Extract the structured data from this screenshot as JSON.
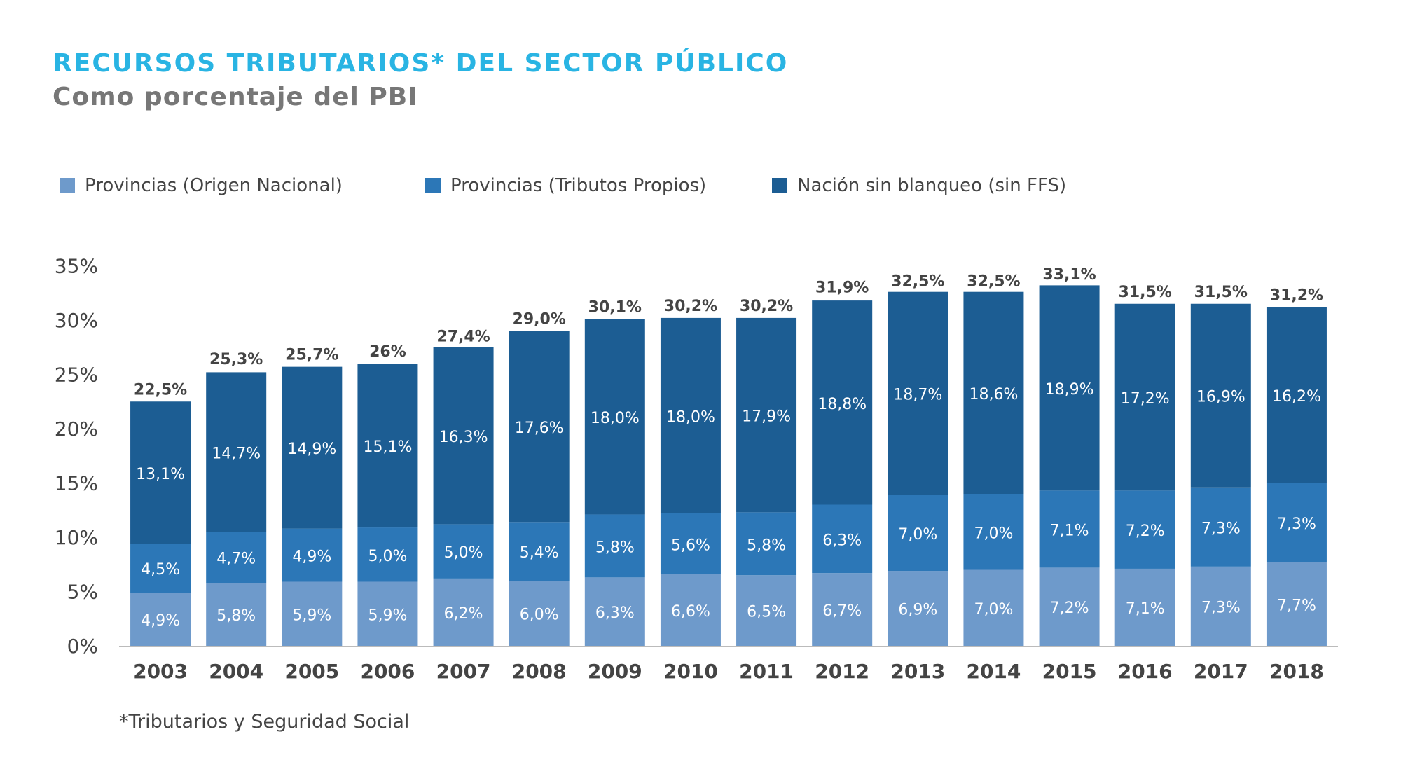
{
  "title": "RECURSOS TRIBUTARIOS* DEL SECTOR PÚBLICO",
  "subtitle": "Como porcentaje del PBI",
  "footnote": "*Tributarios y Seguridad Social",
  "colors": {
    "title": "#29b4e3",
    "series_1": "#6e9acb",
    "series_2": "#2c77b7",
    "series_3": "#1c5d93",
    "axis": "#bbbbbb"
  },
  "chart_data": {
    "type": "bar",
    "stacked": true,
    "categories": [
      "2003",
      "2004",
      "2005",
      "2006",
      "2007",
      "2008",
      "2009",
      "2010",
      "2011",
      "2012",
      "2013",
      "2014",
      "2015",
      "2016",
      "2017",
      "2018"
    ],
    "ylim": [
      0,
      35
    ],
    "yticks": [
      "0%",
      "5%",
      "10%",
      "15%",
      "20%",
      "25%",
      "30%",
      "35%"
    ],
    "legend_position": "top-left",
    "grid": false,
    "series": [
      {
        "name": "Provincias (Origen Nacional)",
        "color": "#6e9acb",
        "values": [
          4.9,
          5.8,
          5.9,
          5.9,
          6.2,
          6.0,
          6.3,
          6.6,
          6.5,
          6.7,
          6.9,
          7.0,
          7.2,
          7.1,
          7.3,
          7.7
        ],
        "labels": [
          "4,9%",
          "5,8%",
          "5,9%",
          "5,9%",
          "6,2%",
          "6,0%",
          "6,3%",
          "6,6%",
          "6,5%",
          "6,7%",
          "6,9%",
          "7,0%",
          "7,2%",
          "7,1%",
          "7,3%",
          "7,7%"
        ]
      },
      {
        "name": "Provincias (Tributos Propios)",
        "color": "#2c77b7",
        "values": [
          4.5,
          4.7,
          4.9,
          5.0,
          5.0,
          5.4,
          5.8,
          5.6,
          5.8,
          6.3,
          7.0,
          7.0,
          7.1,
          7.2,
          7.3,
          7.3
        ],
        "labels": [
          "4,5%",
          "4,7%",
          "4,9%",
          "5,0%",
          "5,0%",
          "5,4%",
          "5,8%",
          "5,6%",
          "5,8%",
          "6,3%",
          "7,0%",
          "7,0%",
          "7,1%",
          "7,2%",
          "7,3%",
          "7,3%"
        ]
      },
      {
        "name": "Nación sin blanqueo (sin FFS)",
        "color": "#1c5d93",
        "values": [
          13.1,
          14.7,
          14.9,
          15.1,
          16.3,
          17.6,
          18.0,
          18.0,
          17.9,
          18.8,
          18.7,
          18.6,
          18.9,
          17.2,
          16.9,
          16.2
        ],
        "labels": [
          "13,1%",
          "14,7%",
          "14,9%",
          "15,1%",
          "16,3%",
          "17,6%",
          "18,0%",
          "18,0%",
          "17,9%",
          "18,8%",
          "18,7%",
          "18,6%",
          "18,9%",
          "17,2%",
          "16,9%",
          "16,2%"
        ]
      }
    ],
    "totals": [
      22.5,
      25.3,
      25.7,
      26,
      27.4,
      29.0,
      30.1,
      30.2,
      30.2,
      31.9,
      32.5,
      32.5,
      33.1,
      31.5,
      31.5,
      31.2
    ],
    "total_labels": [
      "22,5%",
      "25,3%",
      "25,7%",
      "26%",
      "27,4%",
      "29,0%",
      "30,1%",
      "30,2%",
      "30,2%",
      "31,9%",
      "32,5%",
      "32,5%",
      "33,1%",
      "31,5%",
      "31,5%",
      "31,2%"
    ]
  }
}
